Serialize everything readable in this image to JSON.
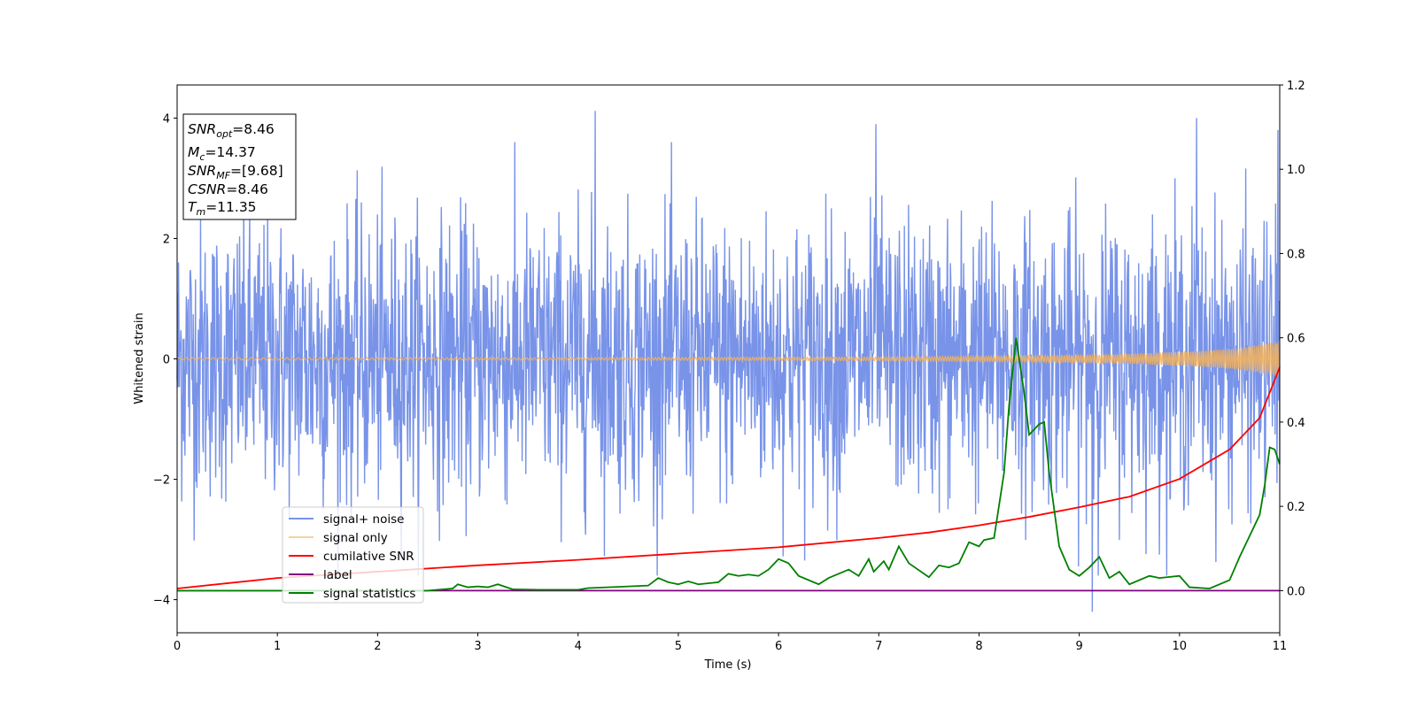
{
  "chart_data": {
    "type": "line",
    "xlabel": "Time (s)",
    "ylabel": "Whitened strain",
    "xlim": [
      0,
      11
    ],
    "ylim_left": [
      -4.55,
      4.55
    ],
    "ylim_right": [
      -0.1,
      1.2
    ],
    "x_ticks": [
      "0",
      "1",
      "2",
      "3",
      "4",
      "5",
      "6",
      "7",
      "8",
      "9",
      "10",
      "11"
    ],
    "y_left_ticks": [
      "−4",
      "−2",
      "0",
      "2",
      "4"
    ],
    "y_right_ticks": [
      "0.0",
      "0.2",
      "0.4",
      "0.6",
      "0.8",
      "1.0",
      "1.2"
    ],
    "legend_position": "lower-left",
    "stats": {
      "snr_opt_label": "SNR",
      "snr_opt_sub": "opt",
      "snr_opt_value": "=8.46",
      "mc_label": "M",
      "mc_sub": "c",
      "mc_value": "=14.37",
      "snr_mf_label": "SNR",
      "snr_mf_sub": "MF",
      "snr_mf_value": "=[9.68]",
      "csnr_label": "CSNR",
      "csnr_value": "=8.46",
      "tm_label": "T",
      "tm_sub": "m",
      "tm_value": "=11.35"
    },
    "series": [
      {
        "name": "signal+ noise",
        "axis": "left",
        "color": "#7893e8",
        "description_of_values": "dense noise, approx Gaussian amplitude ~1.2 std",
        "notable_peaks": [
          [
            4.17,
            4.12
          ],
          [
            10.17,
            4.0
          ],
          [
            6.97,
            3.9
          ],
          [
            9.13,
            -4.2
          ],
          [
            10.98,
            3.8
          ]
        ]
      },
      {
        "name": "signal only",
        "axis": "left",
        "color": "#f3b15c",
        "envelope_points": [
          [
            0,
            0.02
          ],
          [
            4,
            0.02
          ],
          [
            7,
            0.03
          ],
          [
            8.5,
            0.05
          ],
          [
            9.5,
            0.08
          ],
          [
            10.2,
            0.13
          ],
          [
            10.6,
            0.18
          ],
          [
            11,
            0.3
          ]
        ]
      },
      {
        "name": "cumilative SNR",
        "axis": "right",
        "color": "#ff0000",
        "points": [
          [
            0,
            0.005
          ],
          [
            1,
            0.03
          ],
          [
            2,
            0.045
          ],
          [
            3,
            0.06
          ],
          [
            4,
            0.073
          ],
          [
            5,
            0.088
          ],
          [
            6,
            0.103
          ],
          [
            7,
            0.125
          ],
          [
            7.5,
            0.138
          ],
          [
            8,
            0.155
          ],
          [
            8.5,
            0.175
          ],
          [
            9,
            0.198
          ],
          [
            9.5,
            0.223
          ],
          [
            10,
            0.265
          ],
          [
            10.5,
            0.335
          ],
          [
            10.8,
            0.41
          ],
          [
            11,
            0.53
          ]
        ]
      },
      {
        "name": "label",
        "axis": "right",
        "color": "#800080",
        "points": [
          [
            0,
            0.0
          ],
          [
            11,
            0.0
          ]
        ]
      },
      {
        "name": "signal statistics",
        "axis": "right",
        "color": "#008000",
        "points": [
          [
            0,
            0.0
          ],
          [
            0.5,
            0.0
          ],
          [
            1,
            0.0
          ],
          [
            1.5,
            0.0
          ],
          [
            2,
            0.0
          ],
          [
            2.5,
            0.0
          ],
          [
            2.75,
            0.005
          ],
          [
            2.8,
            0.015
          ],
          [
            2.9,
            0.008
          ],
          [
            3.0,
            0.01
          ],
          [
            3.1,
            0.008
          ],
          [
            3.2,
            0.015
          ],
          [
            3.35,
            0.003
          ],
          [
            3.6,
            0.002
          ],
          [
            3.8,
            0.002
          ],
          [
            4.0,
            0.002
          ],
          [
            4.1,
            0.006
          ],
          [
            4.5,
            0.01
          ],
          [
            4.7,
            0.012
          ],
          [
            4.8,
            0.03
          ],
          [
            4.9,
            0.02
          ],
          [
            5.0,
            0.015
          ],
          [
            5.1,
            0.022
          ],
          [
            5.2,
            0.015
          ],
          [
            5.4,
            0.02
          ],
          [
            5.5,
            0.04
          ],
          [
            5.6,
            0.035
          ],
          [
            5.7,
            0.038
          ],
          [
            5.8,
            0.035
          ],
          [
            5.9,
            0.05
          ],
          [
            6.0,
            0.075
          ],
          [
            6.1,
            0.065
          ],
          [
            6.2,
            0.035
          ],
          [
            6.4,
            0.015
          ],
          [
            6.5,
            0.03
          ],
          [
            6.7,
            0.05
          ],
          [
            6.8,
            0.035
          ],
          [
            6.9,
            0.075
          ],
          [
            6.95,
            0.045
          ],
          [
            7.05,
            0.07
          ],
          [
            7.1,
            0.05
          ],
          [
            7.2,
            0.105
          ],
          [
            7.3,
            0.065
          ],
          [
            7.5,
            0.032
          ],
          [
            7.6,
            0.06
          ],
          [
            7.7,
            0.055
          ],
          [
            7.8,
            0.065
          ],
          [
            7.9,
            0.115
          ],
          [
            8.0,
            0.105
          ],
          [
            8.05,
            0.12
          ],
          [
            8.15,
            0.125
          ],
          [
            8.25,
            0.28
          ],
          [
            8.3,
            0.44
          ],
          [
            8.37,
            0.6
          ],
          [
            8.45,
            0.47
          ],
          [
            8.5,
            0.37
          ],
          [
            8.6,
            0.395
          ],
          [
            8.65,
            0.4
          ],
          [
            8.7,
            0.28
          ],
          [
            8.8,
            0.105
          ],
          [
            8.9,
            0.05
          ],
          [
            9.0,
            0.035
          ],
          [
            9.1,
            0.055
          ],
          [
            9.2,
            0.08
          ],
          [
            9.3,
            0.03
          ],
          [
            9.4,
            0.045
          ],
          [
            9.5,
            0.015
          ],
          [
            9.7,
            0.035
          ],
          [
            9.8,
            0.03
          ],
          [
            10.0,
            0.035
          ],
          [
            10.1,
            0.008
          ],
          [
            10.3,
            0.005
          ],
          [
            10.5,
            0.025
          ],
          [
            10.6,
            0.08
          ],
          [
            10.7,
            0.13
          ],
          [
            10.8,
            0.18
          ],
          [
            10.85,
            0.25
          ],
          [
            10.9,
            0.34
          ],
          [
            10.95,
            0.335
          ],
          [
            11.0,
            0.3
          ]
        ]
      }
    ]
  }
}
